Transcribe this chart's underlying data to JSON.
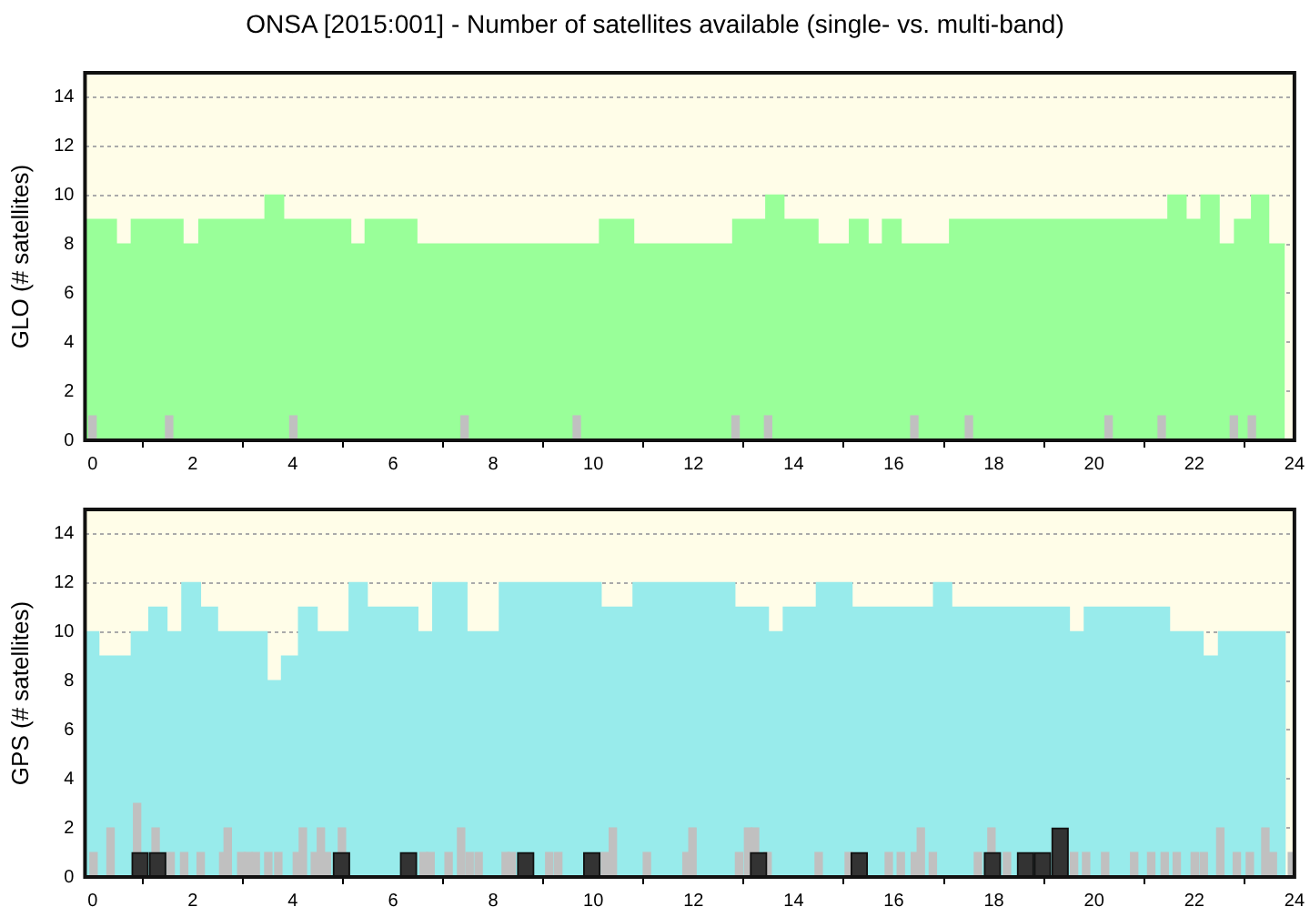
{
  "chart_data": [
    {
      "type": "area",
      "title": "ONSA [2015:001] - Number of satellites available (single- vs. multi-band)",
      "ylabel": "GLO (# satellites)",
      "xlim": [
        -0.15,
        24
      ],
      "ylim": [
        0,
        15
      ],
      "xticks": [
        0,
        2,
        4,
        6,
        8,
        10,
        12,
        14,
        16,
        18,
        20,
        22,
        24
      ],
      "yticks": [
        0,
        2,
        4,
        6,
        8,
        10,
        12,
        14
      ],
      "grid": "y",
      "legend": false,
      "series": [
        {
          "type": "area",
          "color": "#99ff99",
          "x": [
            -0.15,
            0.47,
            0.47,
            0.78,
            0.78,
            1.8,
            1.8,
            2.13,
            2.13,
            3.45,
            3.45,
            3.81,
            3.81,
            5.15,
            5.15,
            5.45,
            5.45,
            6.47,
            6.47,
            10.13,
            10.13,
            10.8,
            10.8,
            12.79,
            12.79,
            13.45,
            13.45,
            13.8,
            13.8,
            14.48,
            14.48,
            15.12,
            15.12,
            15.48,
            15.48,
            15.78,
            15.78,
            16.14,
            16.14,
            17.12,
            17.12,
            21.48,
            21.48,
            21.83,
            21.83,
            22.14,
            22.14,
            22.49,
            22.49,
            22.81,
            22.81,
            23.15,
            23.15,
            23.48,
            23.48,
            23.81
          ],
          "values": [
            9,
            9,
            8,
            8,
            9,
            9,
            8,
            8,
            9,
            9,
            10,
            10,
            9,
            9,
            8,
            8,
            9,
            9,
            8,
            8,
            9,
            9,
            8,
            8,
            9,
            9,
            10,
            10,
            9,
            9,
            8,
            8,
            9,
            9,
            8,
            8,
            9,
            9,
            8,
            8,
            9,
            9,
            10,
            10,
            9,
            9,
            10,
            10,
            8,
            8,
            9,
            9,
            10,
            10,
            8,
            8
          ]
        },
        {
          "type": "bar",
          "color": "#c0c0c0",
          "x": [
            0,
            1.53,
            4.01,
            7.43,
            9.67,
            12.84,
            13.49,
            16.41,
            17.5,
            20.29,
            21.35,
            22.79,
            23.15
          ],
          "values": [
            1,
            1,
            1,
            1,
            1,
            1,
            1,
            1,
            1,
            1,
            1,
            1,
            1
          ]
        }
      ]
    },
    {
      "type": "area",
      "ylabel": "GPS (# satellites)",
      "xlim": [
        -0.15,
        24
      ],
      "ylim": [
        0,
        15
      ],
      "xticks": [
        0,
        2,
        4,
        6,
        8,
        10,
        12,
        14,
        16,
        18,
        20,
        22,
        24
      ],
      "yticks": [
        0,
        2,
        4,
        6,
        8,
        10,
        12,
        14
      ],
      "grid": "y",
      "legend": false,
      "series": [
        {
          "type": "area",
          "color": "#98ebeb",
          "x": [
            -0.15,
            0.12,
            0.12,
            0.78,
            0.78,
            1.13,
            1.13,
            1.48,
            1.48,
            1.79,
            1.79,
            2.15,
            2.15,
            2.49,
            2.49,
            3.48,
            3.48,
            3.78,
            3.78,
            4.12,
            4.12,
            4.48,
            4.48,
            5.13,
            5.13,
            5.48,
            5.48,
            6.49,
            6.49,
            6.8,
            6.8,
            7.47,
            7.47,
            8.13,
            8.13,
            10.15,
            10.15,
            10.8,
            10.8,
            12.82,
            12.82,
            13.49,
            13.49,
            13.8,
            13.8,
            14.46,
            14.46,
            15.16,
            15.16,
            16.8,
            16.8,
            17.15,
            17.15,
            19.5,
            19.5,
            19.81,
            19.81,
            21.5,
            21.5,
            22.17,
            22.17,
            22.49,
            22.49,
            23.83
          ],
          "values": [
            10,
            10,
            9,
            9,
            10,
            10,
            11,
            11,
            10,
            10,
            12,
            12,
            11,
            11,
            10,
            10,
            8,
            8,
            9,
            9,
            11,
            11,
            10,
            10,
            12,
            12,
            11,
            11,
            10,
            10,
            12,
            12,
            10,
            10,
            12,
            12,
            11,
            11,
            12,
            12,
            11,
            11,
            10,
            10,
            11,
            11,
            12,
            12,
            11,
            11,
            12,
            12,
            11,
            11,
            10,
            10,
            11,
            11,
            10,
            10,
            9,
            9,
            10,
            10
          ]
        },
        {
          "type": "bar",
          "color": "#c0c0c0",
          "x": [
            0.02,
            0.36,
            0.89,
            1.26,
            1.56,
            1.83,
            2.16,
            2.61,
            2.7,
            2.97,
            3.11,
            3.26,
            3.51,
            3.71,
            4.08,
            4.2,
            4.44,
            4.56,
            4.68,
            4.98,
            6.61,
            6.75,
            7.11,
            7.36,
            7.53,
            7.71,
            8.25,
            8.37,
            9.12,
            9.3,
            10.23,
            10.39,
            11.07,
            11.86,
            11.98,
            12.91,
            13.09,
            13.23,
            13.48,
            14.5,
            15.1,
            15.9,
            16.14,
            16.42,
            16.54,
            16.78,
            17.68,
            17.95,
            18.26,
            19.6,
            19.84,
            20.22,
            20.8,
            21.14,
            21.41,
            21.65,
            22.01,
            22.19,
            22.52,
            22.85,
            23.11,
            23.42,
            23.57,
            23.95
          ],
          "values": [
            1,
            2,
            3,
            2,
            1,
            1,
            1,
            1,
            2,
            1,
            1,
            1,
            1,
            1,
            1,
            2,
            1,
            2,
            1,
            2,
            1,
            1,
            1,
            2,
            1,
            1,
            1,
            1,
            1,
            1,
            1,
            2,
            1,
            1,
            2,
            1,
            2,
            2,
            1,
            1,
            1,
            1,
            1,
            1,
            2,
            1,
            1,
            2,
            1,
            1,
            1,
            1,
            1,
            1,
            1,
            1,
            1,
            1,
            2,
            1,
            1,
            2,
            1,
            1
          ]
        },
        {
          "type": "bar",
          "color": "#333333",
          "x": [
            0.95,
            1.3,
            4.97,
            6.31,
            8.65,
            9.97,
            13.3,
            15.31,
            17.97,
            18.63,
            18.97,
            19.32
          ],
          "values": [
            1,
            1,
            1,
            1,
            1,
            1,
            1,
            1,
            1,
            1,
            1,
            2
          ]
        }
      ]
    }
  ]
}
